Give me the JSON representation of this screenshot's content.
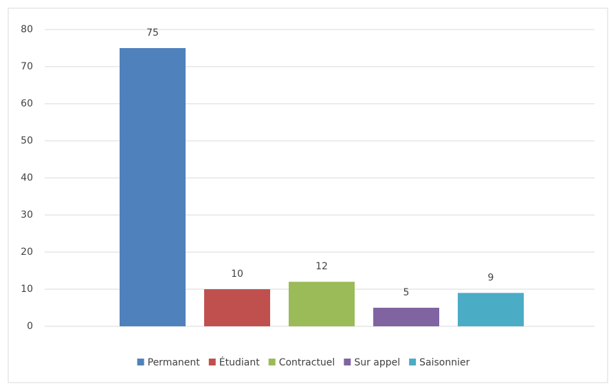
{
  "chart_data": {
    "type": "bar",
    "categories": [
      "Permanent",
      "Étudiant",
      "Contractuel",
      "Sur appel",
      "Saisonnier"
    ],
    "values": [
      75,
      10,
      12,
      5,
      9
    ],
    "colors": [
      "#4f81bd",
      "#c0504d",
      "#9bbb59",
      "#8064a2",
      "#4bacc6"
    ],
    "ylim": [
      0,
      80
    ],
    "yticks": [
      0,
      10,
      20,
      30,
      40,
      50,
      60,
      70,
      80
    ],
    "grid": true,
    "data_labels": true,
    "legend": "bottom"
  }
}
